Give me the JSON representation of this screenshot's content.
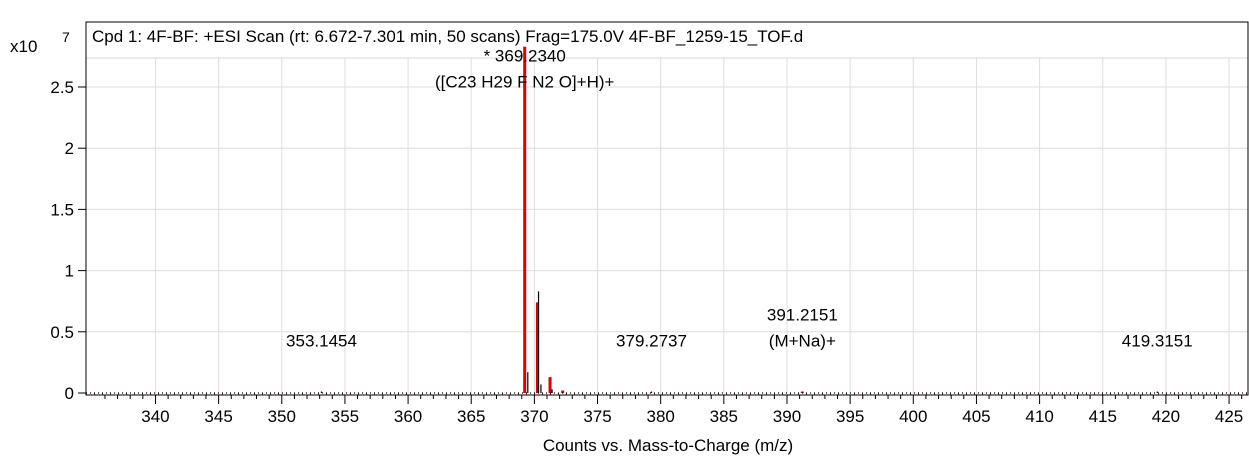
{
  "chart_data": {
    "type": "bar",
    "title": "Cpd 1: 4F-BF: +ESI Scan (rt: 6.672-7.301 min, 50 scans) Frag=175.0V 4F-BF_1259-15_TOF.d",
    "xlabel": "Counts vs. Mass-to-Charge (m/z)",
    "ylabel": "",
    "y_multiplier": "x10",
    "y_exponent": "7",
    "xlim": [
      334.5,
      426.5
    ],
    "ylim": [
      0,
      2.83
    ],
    "xticks": [
      340,
      345,
      350,
      355,
      360,
      365,
      370,
      375,
      380,
      385,
      390,
      395,
      400,
      405,
      410,
      415,
      420,
      425
    ],
    "yticks": [
      0,
      0.5,
      1,
      1.5,
      2,
      2.5
    ],
    "ytick_labels": [
      "0",
      "0.5",
      "1",
      "1.5",
      "2",
      "2.5"
    ],
    "grid": true,
    "series": [
      {
        "color": "#e00000",
        "points": [
          {
            "x": 369.234,
            "y": 2.83
          },
          {
            "x": 370.24,
            "y": 0.74
          },
          {
            "x": 371.24,
            "y": 0.13
          },
          {
            "x": 372.24,
            "y": 0.02
          },
          {
            "x": 391.215,
            "y": 0.012
          }
        ]
      },
      {
        "color": "#000000",
        "points": [
          {
            "x": 369.48,
            "y": 0.17
          },
          {
            "x": 370.33,
            "y": 0.83
          },
          {
            "x": 370.52,
            "y": 0.07
          },
          {
            "x": 371.4,
            "y": 0.03
          },
          {
            "x": 353.1454,
            "y": 0.012
          },
          {
            "x": 379.2737,
            "y": 0.012
          },
          {
            "x": 419.3151,
            "y": 0.012
          }
        ]
      }
    ],
    "annotations": [
      {
        "x": 369.234,
        "y": 2.71,
        "lines": [
          "* 369.2340",
          "([C23 H29 F N2 O]+H)+"
        ]
      },
      {
        "x": 353.1454,
        "y": 0.38,
        "lines": [
          "353.1454"
        ]
      },
      {
        "x": 379.2737,
        "y": 0.38,
        "lines": [
          "379.2737"
        ]
      },
      {
        "x": 391.2151,
        "y": 0.38,
        "lines": [
          "391.2151",
          "(M+Na)+"
        ]
      },
      {
        "x": 419.3151,
        "y": 0.38,
        "lines": [
          "419.3151"
        ]
      }
    ]
  }
}
